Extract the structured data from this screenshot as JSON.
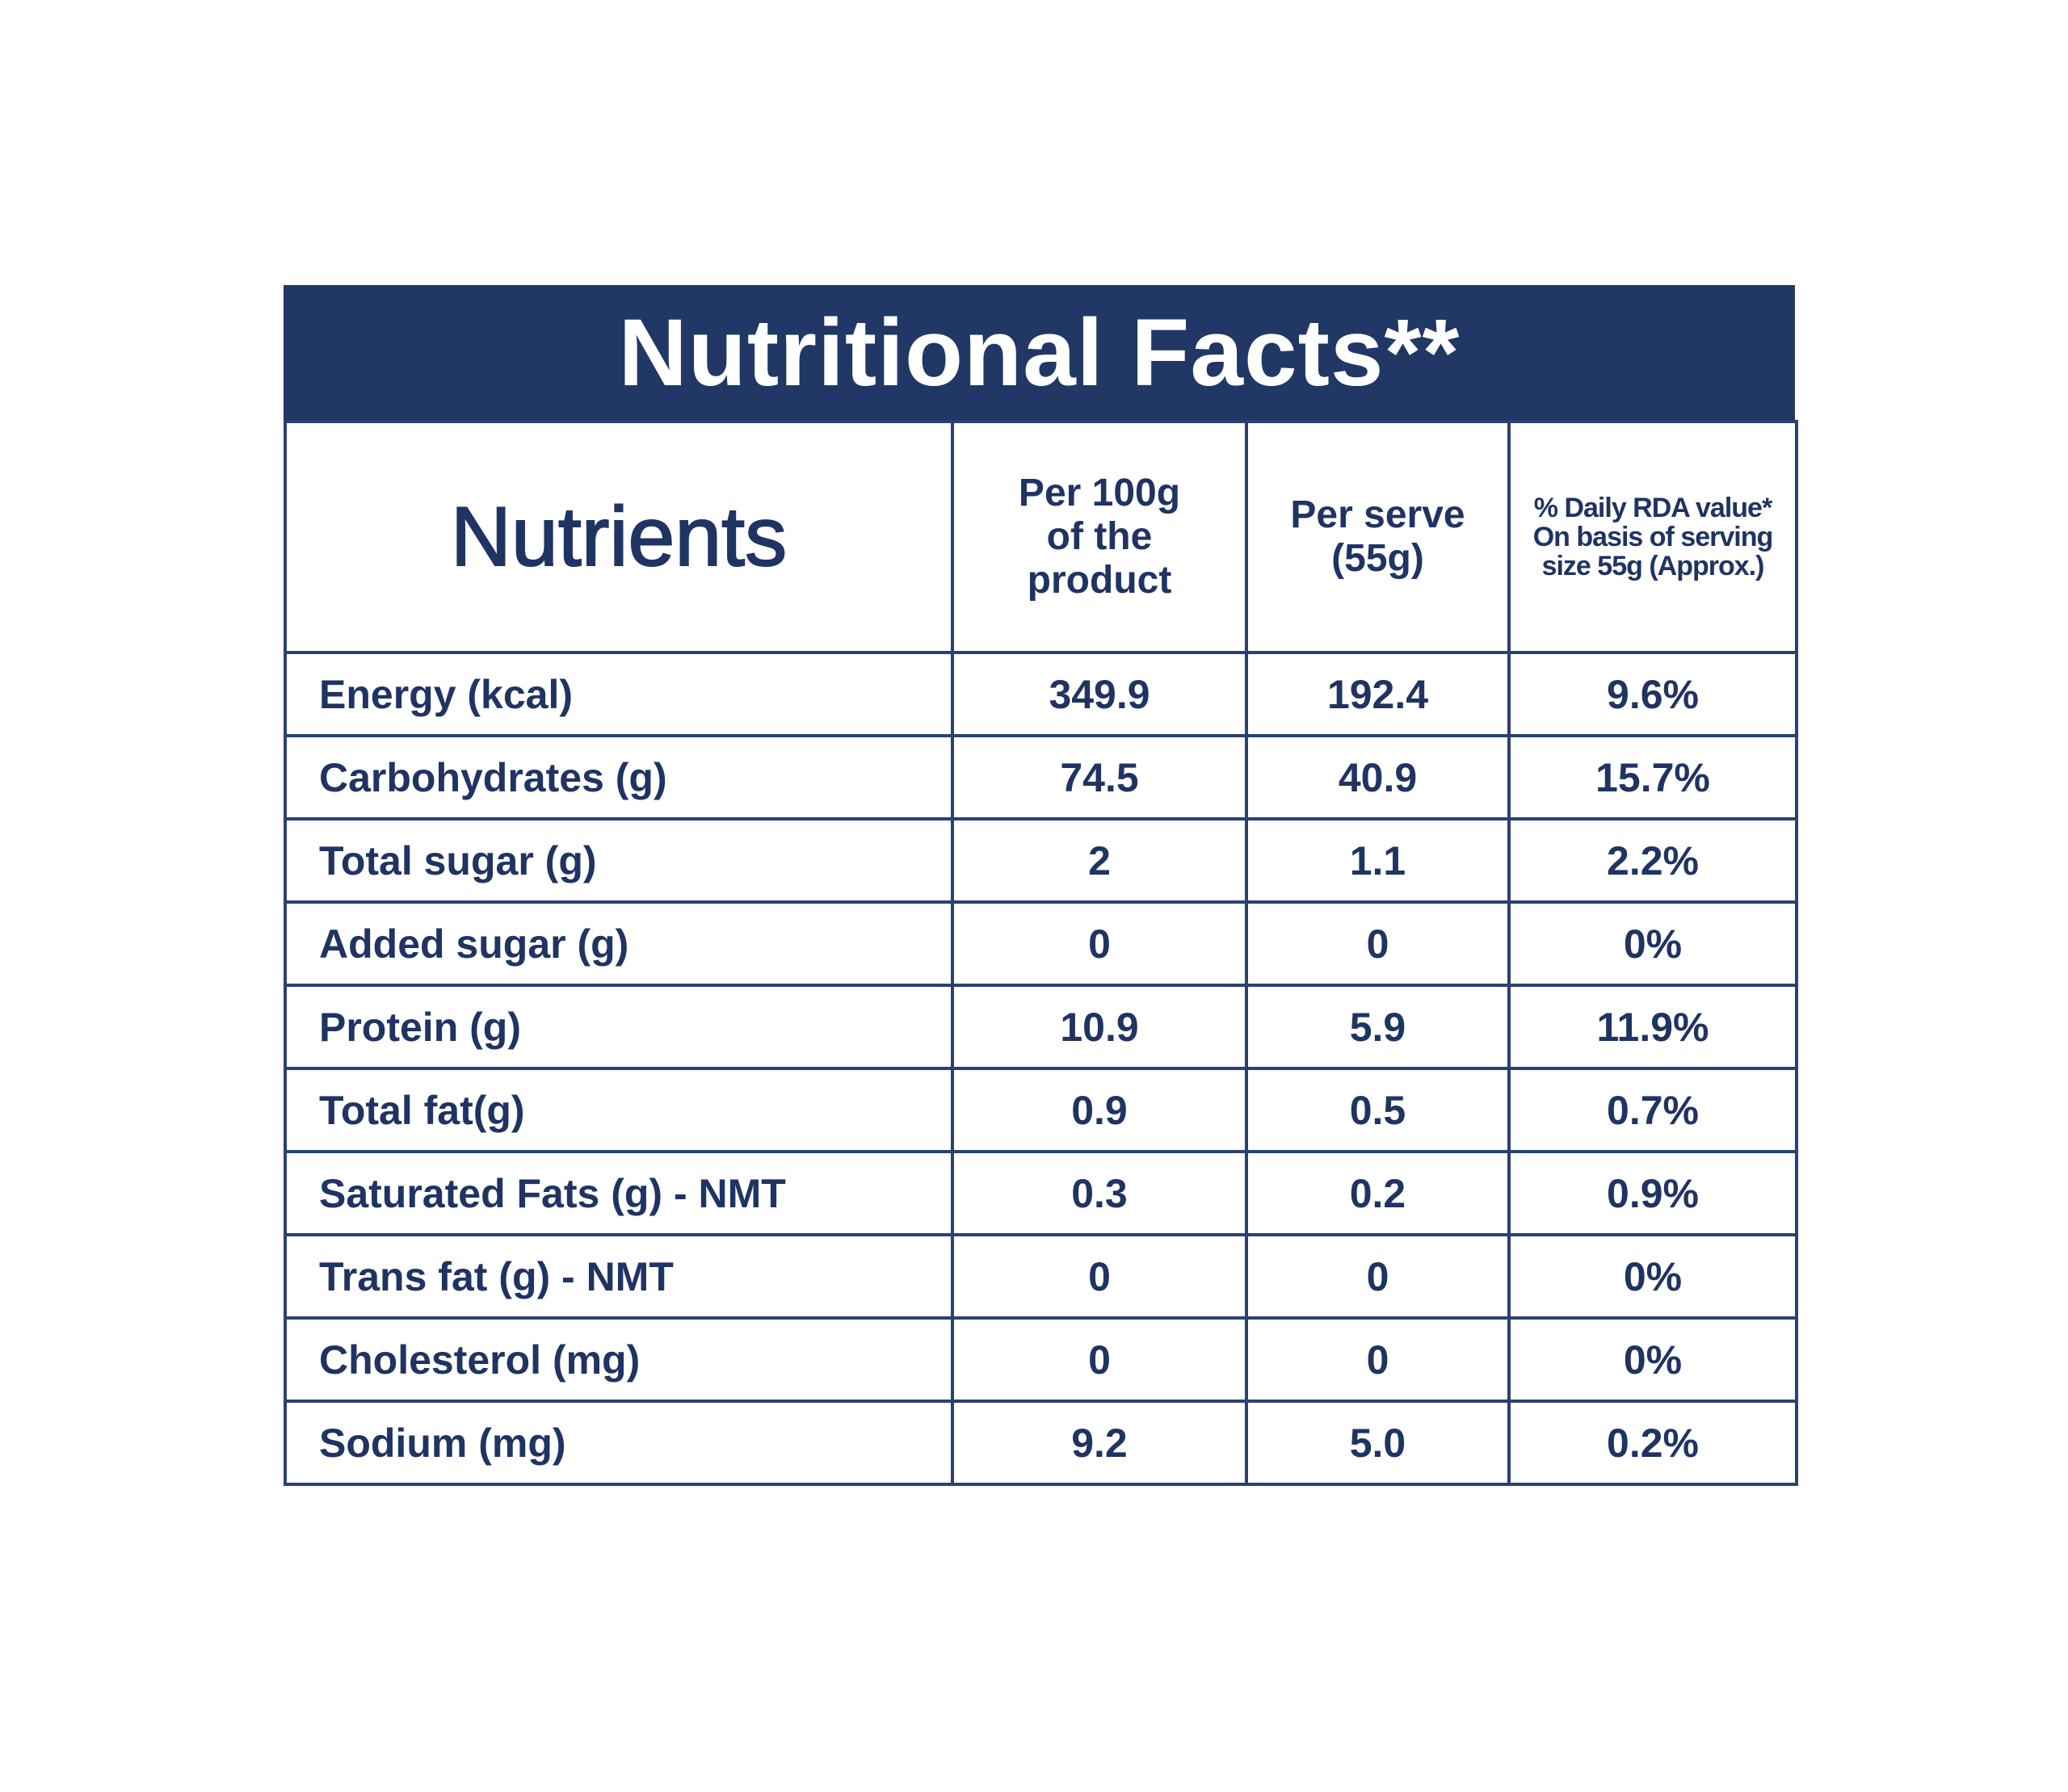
{
  "title": "Nutritional Facts**",
  "table": {
    "header": [
      [
        "Nutrients"
      ],
      [
        "Per 100g",
        "of the",
        "product"
      ],
      [
        "Per serve",
        "(55g)"
      ],
      [
        "% Daily RDA value*",
        "On basis of serving",
        "size 55g (Approx.)"
      ]
    ],
    "rows": [
      [
        "Energy (kcal)",
        "349.9",
        "192.4",
        "9.6%"
      ],
      [
        "Carbohydrates (g)",
        "74.5",
        "40.9",
        "15.7%"
      ],
      [
        "Total sugar (g)",
        "2",
        "1.1",
        "2.2%"
      ],
      [
        "Added sugar (g)",
        "0",
        "0",
        "0%"
      ],
      [
        "Protein (g)",
        "10.9",
        "5.9",
        "11.9%"
      ],
      [
        "Total fat(g)",
        "0.9",
        "0.5",
        "0.7%"
      ],
      [
        "Saturated Fats (g) - NMT",
        "0.3",
        "0.2",
        "0.9%"
      ],
      [
        "Trans fat (g) - NMT",
        "0",
        "0",
        "0%"
      ],
      [
        "Cholesterol (mg)",
        "0",
        "0",
        "0%"
      ],
      [
        "Sodium (mg)",
        "9.2",
        "5.0",
        "0.2%"
      ]
    ]
  }
}
